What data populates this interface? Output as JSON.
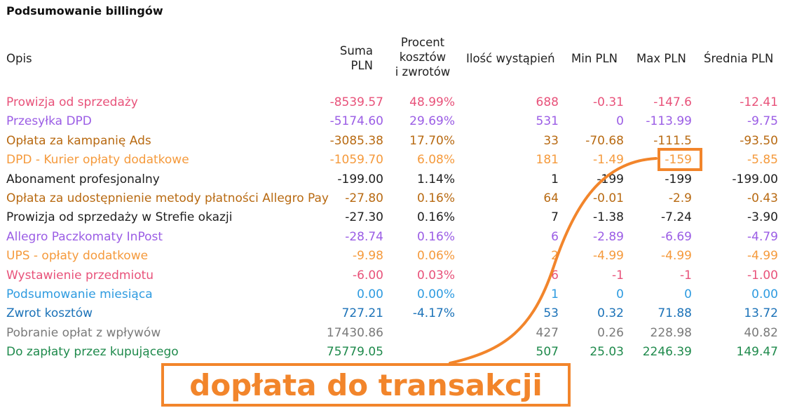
{
  "title": "Podsumowanie billingów",
  "headers": {
    "opis": "Opis",
    "suma_line1": "Suma",
    "suma_line2": "PLN",
    "procent_line1": "Procent",
    "procent_line2": "kosztów",
    "procent_line3": "i zwrotów",
    "ilosc": "Ilość wystąpień",
    "min": "Min PLN",
    "max": "Max PLN",
    "srednia": "Średnia PLN"
  },
  "rows": [
    {
      "opis": "Prowizja od sprzedaży",
      "suma": "-8539.57",
      "procent": "48.99%",
      "ilosc": "688",
      "min": "-0.31",
      "max": "-147.6",
      "srednia": "-12.41",
      "color": "#e8527a"
    },
    {
      "opis": "Przesyłka DPD",
      "suma": "-5174.60",
      "procent": "29.69%",
      "ilosc": "531",
      "min": "0",
      "max": "-113.99",
      "srednia": "-9.75",
      "color": "#9b5de5"
    },
    {
      "opis": "Opłata za kampanię Ads",
      "suma": "-3085.38",
      "procent": "17.70%",
      "ilosc": "33",
      "min": "-70.68",
      "max": "-111.5",
      "srednia": "-93.50",
      "color": "#b86a12"
    },
    {
      "opis": "DPD - Kurier opłaty dodatkowe",
      "suma": "-1059.70",
      "procent": "6.08%",
      "ilosc": "181",
      "min": "-1.49",
      "max": "-159",
      "srednia": "-5.85",
      "color": "#f59a3c"
    },
    {
      "opis": "Abonament profesjonalny",
      "suma": "-199.00",
      "procent": "1.14%",
      "ilosc": "1",
      "min": "-199",
      "max": "-199",
      "srednia": "-199.00",
      "color": "#1f1f1f"
    },
    {
      "opis": "Opłata za udostępnienie metody płatności Allegro Pay",
      "suma": "-27.80",
      "procent": "0.16%",
      "ilosc": "64",
      "min": "-0.01",
      "max": "-2.9",
      "srednia": "-0.43",
      "color": "#b86a12"
    },
    {
      "opis": "Prowizja od sprzedaży w Strefie okazji",
      "suma": "-27.30",
      "procent": "0.16%",
      "ilosc": "7",
      "min": "-1.38",
      "max": "-7.24",
      "srednia": "-3.90",
      "color": "#1f1f1f"
    },
    {
      "opis": "Allegro Paczkomaty InPost",
      "suma": "-28.74",
      "procent": "0.16%",
      "ilosc": "6",
      "min": "-2.89",
      "max": "-6.69",
      "srednia": "-4.79",
      "color": "#9b5de5"
    },
    {
      "opis": "UPS - opłaty dodatkowe",
      "suma": "-9.98",
      "procent": "0.06%",
      "ilosc": "2",
      "min": "-4.99",
      "max": "-4.99",
      "srednia": "-4.99",
      "color": "#f59a3c"
    },
    {
      "opis": "Wystawienie przedmiotu",
      "suma": "-6.00",
      "procent": "0.03%",
      "ilosc": "6",
      "min": "-1",
      "max": "-1",
      "srednia": "-1.00",
      "color": "#e8527a"
    },
    {
      "opis": "Podsumowanie miesiąca",
      "suma": "0.00",
      "procent": "0.00%",
      "ilosc": "1",
      "min": "0",
      "max": "0",
      "srednia": "0.00",
      "color": "#2e9be0"
    },
    {
      "opis": "Zwrot kosztów",
      "suma": "727.21",
      "procent": "-4.17%",
      "ilosc": "53",
      "min": "0.32",
      "max": "71.88",
      "srednia": "13.72",
      "color": "#1b72b8"
    },
    {
      "opis": "Pobranie opłat z wpływów",
      "suma": "17430.86",
      "procent": "",
      "ilosc": "427",
      "min": "0.26",
      "max": "228.98",
      "srednia": "40.82",
      "color": "#7a7a7a"
    },
    {
      "opis": "Do zapłaty przez kupującego",
      "suma": "75779.05",
      "procent": "",
      "ilosc": "507",
      "min": "25.03",
      "max": "2246.39",
      "srednia": "149.47",
      "color": "#1f8a4c"
    }
  ],
  "annotation": {
    "text": "dopłata do transakcji",
    "color": "#f2852b"
  }
}
